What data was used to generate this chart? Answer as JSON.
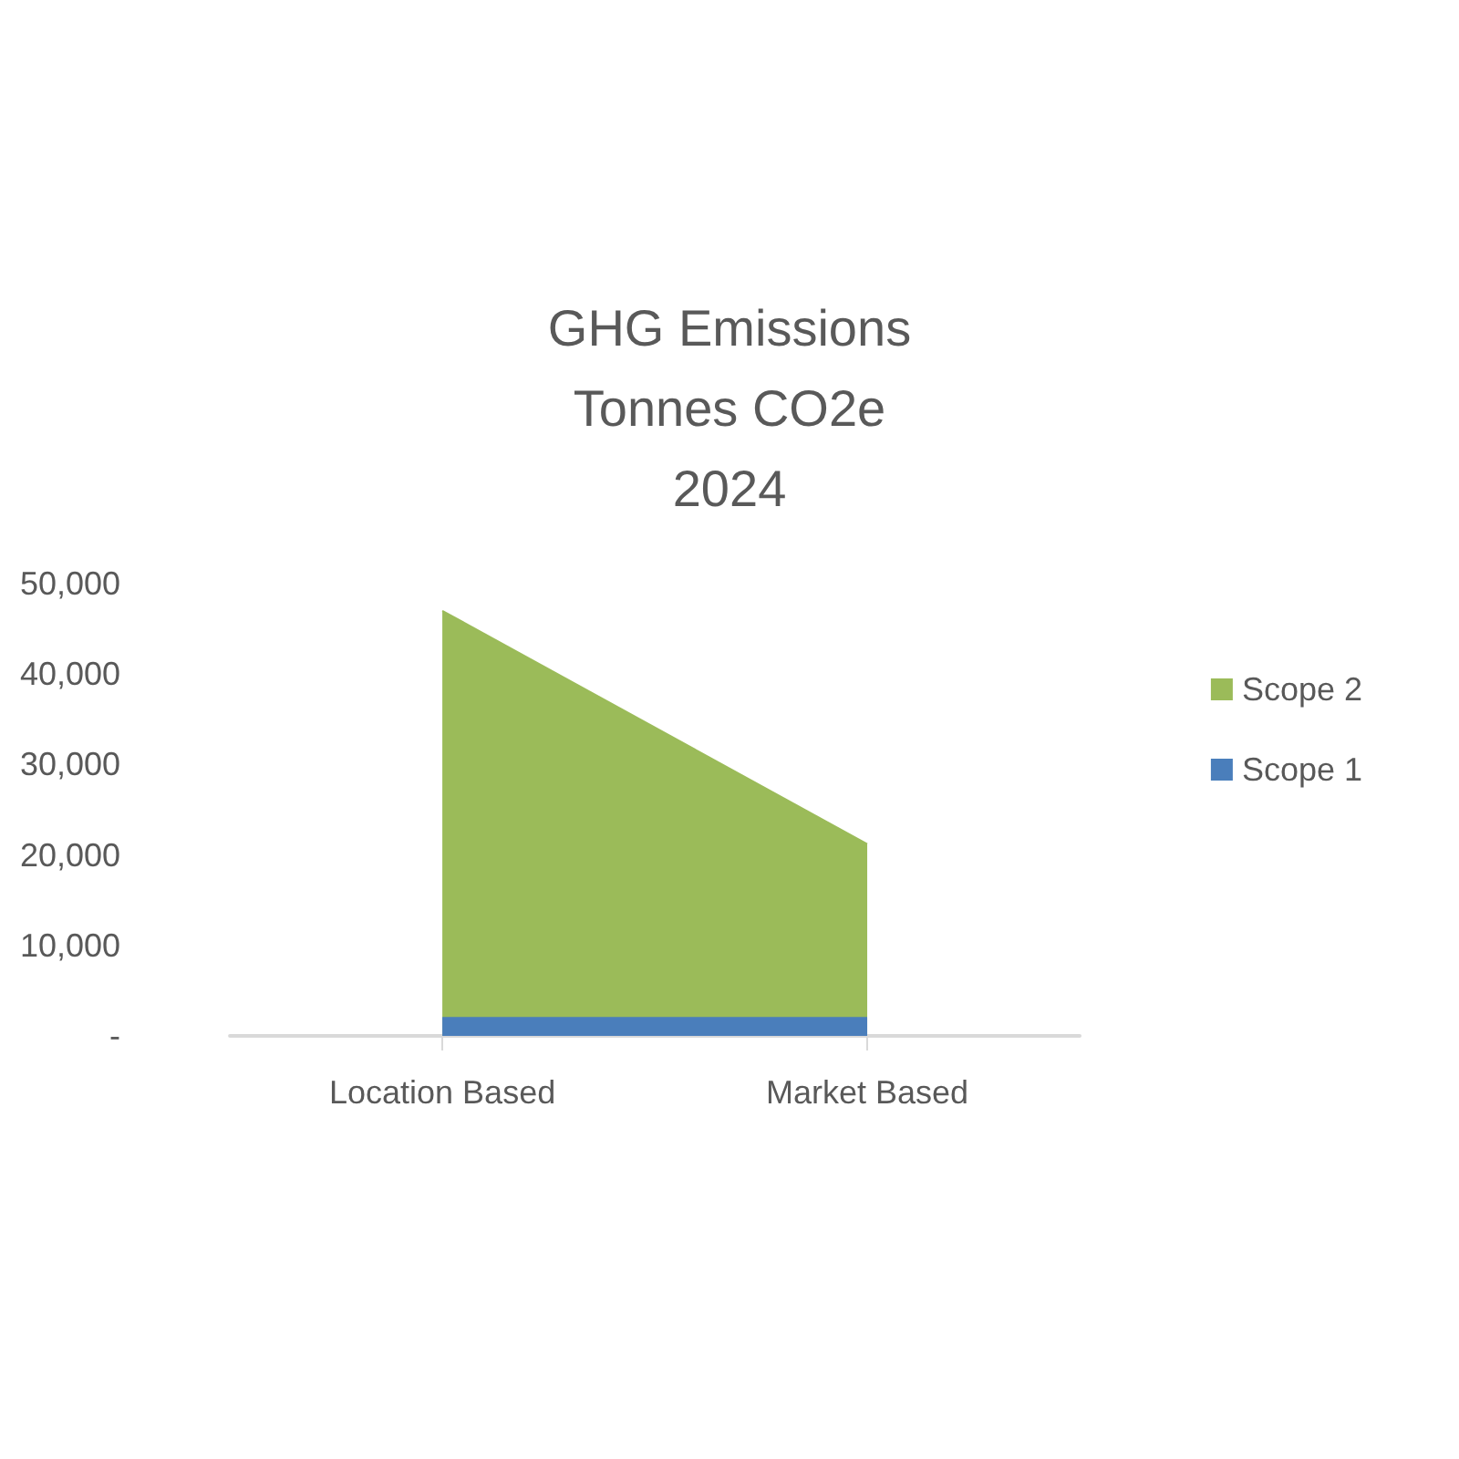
{
  "chart_data": {
    "type": "area",
    "title": "GHG Emissions\nTonnes CO2e\n2024",
    "stacked": true,
    "categories": [
      "Location Based",
      "Market Based"
    ],
    "series": [
      {
        "name": "Scope 1",
        "color": "#4a7ebb",
        "values": [
          2000,
          2000
        ]
      },
      {
        "name": "Scope 2",
        "color": "#9bbb59",
        "values": [
          45000,
          19200
        ]
      }
    ],
    "ylim": [
      0,
      50000
    ],
    "yticks": [
      {
        "value": 0,
        "label": "-"
      },
      {
        "value": 10000,
        "label": "10,000"
      },
      {
        "value": 20000,
        "label": "20,000"
      },
      {
        "value": 30000,
        "label": "30,000"
      },
      {
        "value": 40000,
        "label": "40,000"
      },
      {
        "value": 50000,
        "label": "50,000"
      }
    ],
    "grid": false,
    "legend": "right"
  }
}
